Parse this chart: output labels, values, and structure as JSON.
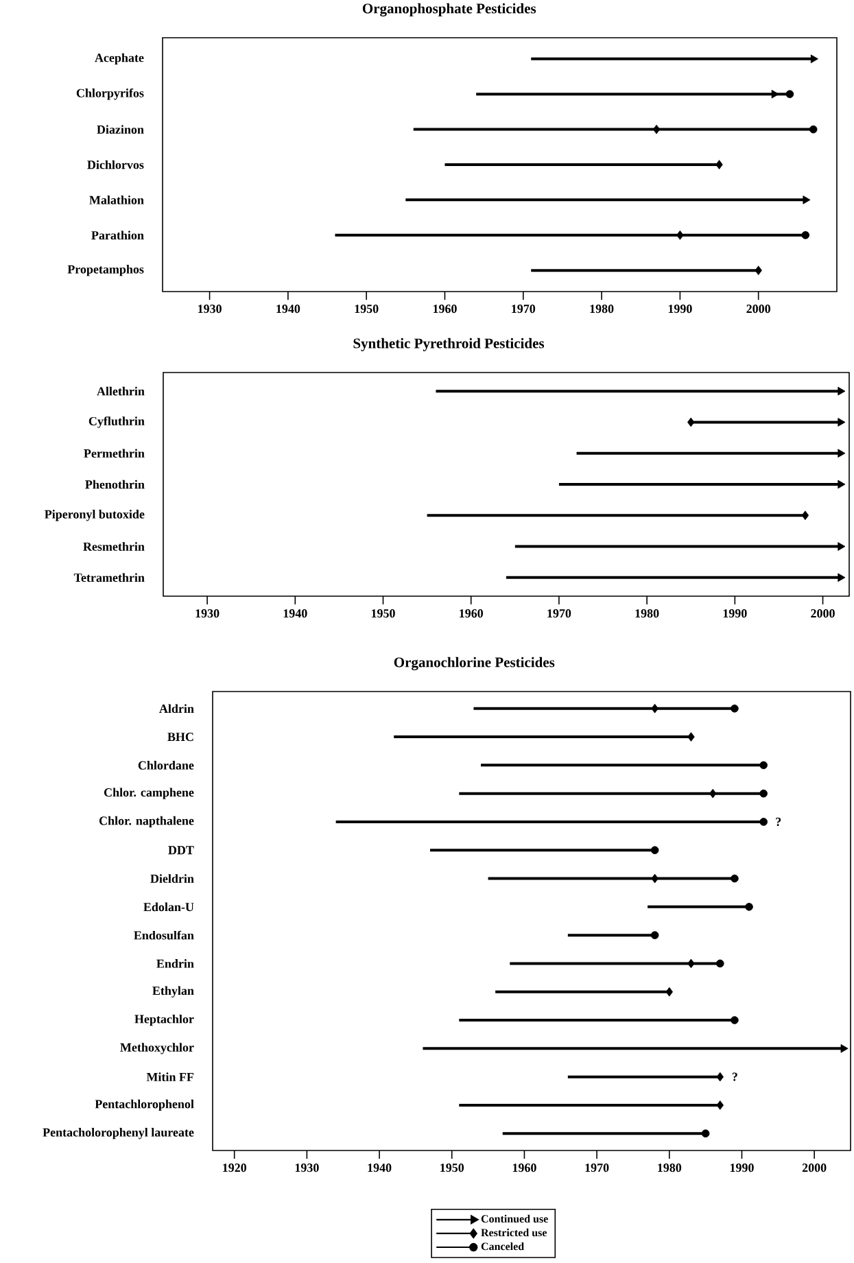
{
  "chart_data": [
    {
      "type": "bar",
      "orientation": "horizontal",
      "title": "Organophosphate Pesticides",
      "categories": [
        "Acephate",
        "Chlorpyrifos",
        "Diazinon",
        "Dichlorvos",
        "Malathion",
        "Parathion",
        "Propetamphos"
      ],
      "xlim": [
        1924,
        2010
      ],
      "xticks": [
        1930,
        1940,
        1950,
        1960,
        1970,
        1980,
        1990,
        2000
      ],
      "series": [
        {
          "color": "#000000",
          "base": [
            1971,
            1964,
            1956,
            1960,
            1955,
            1946,
            1971
          ],
          "values": [
            36,
            40,
            51,
            35,
            51,
            60,
            29
          ]
        },
        {
          "type": "scatter",
          "marker": "triangle",
          "color": "#000000",
          "values": [
            2007,
            2002,
            null,
            null,
            2006,
            null,
            null
          ]
        },
        {
          "type": "scatter",
          "marker": "diamond",
          "color": "#000000",
          "values": [
            null,
            null,
            1987,
            1995,
            null,
            1990,
            2000
          ]
        },
        {
          "type": "scatter",
          "marker": "circle",
          "color": "#000000",
          "values": [
            null,
            2004,
            2007,
            null,
            null,
            2006,
            null
          ]
        }
      ]
    },
    {
      "type": "bar",
      "orientation": "horizontal",
      "title": "Synthetic Pyrethroid Pesticides",
      "categories": [
        "Allethrin",
        "Cyfluthrin",
        "Permethrin",
        "Phenothrin",
        "Piperonyl butoxide",
        "Resmethrin",
        "Tetramethrin"
      ],
      "xlim": [
        1925,
        2003
      ],
      "xticks": [
        1930,
        1940,
        1950,
        1960,
        1970,
        1980,
        1990,
        2000
      ],
      "series": [
        {
          "color": "#000000",
          "base": [
            1956,
            1985,
            1972,
            1970,
            1955,
            1965,
            1964
          ],
          "values": [
            46,
            17,
            30,
            32,
            43,
            37,
            38
          ]
        },
        {
          "type": "scatter",
          "marker": "triangle",
          "color": "#000000",
          "values": [
            2002,
            2002,
            2002,
            2002,
            null,
            2002,
            2002
          ]
        },
        {
          "type": "scatter",
          "marker": "diamond",
          "color": "#000000",
          "values": [
            null,
            1985,
            null,
            null,
            1998,
            null,
            null
          ]
        }
      ]
    },
    {
      "type": "bar",
      "orientation": "horizontal",
      "title": "Organochlorine Pesticides",
      "legend": "bottom",
      "categories": [
        "Aldrin",
        "BHC",
        "Chlordane",
        "Chlor. camphene",
        "Chlor. napthalene",
        "DDT",
        "Dieldrin",
        "Edolan-U",
        "Endosulfan",
        "Endrin",
        "Ethylan",
        "Heptachlor",
        "Methoxychlor",
        "Mitin FF",
        "Pentachlorophenol",
        "Pentacholorophenyl laureate"
      ],
      "xlim": [
        1917,
        2005
      ],
      "xticks": [
        1920,
        1930,
        1940,
        1950,
        1960,
        1970,
        1980,
        1990,
        2000
      ],
      "annotations": [
        {
          "text": "?",
          "x": 1993,
          "y": "Chlor. napthalene"
        },
        {
          "text": "?",
          "x": 1987,
          "y": "Mitin FF"
        }
      ],
      "series": [
        {
          "color": "#000000",
          "base": [
            1953,
            1942,
            1954,
            1951,
            1934,
            1947,
            1955,
            1977,
            1966,
            1958,
            1956,
            1951,
            1946,
            1966,
            1951,
            1957
          ],
          "values": [
            36,
            41,
            39,
            42,
            59,
            31,
            34,
            14,
            12,
            29,
            24,
            38,
            58,
            21,
            36,
            28
          ]
        },
        {
          "type": "scatter",
          "name": "Continued use",
          "marker": "triangle",
          "color": "#000000",
          "values": [
            null,
            null,
            null,
            null,
            null,
            null,
            null,
            null,
            null,
            null,
            null,
            null,
            2004,
            null,
            null,
            null
          ]
        },
        {
          "type": "scatter",
          "name": "Restricted use",
          "marker": "diamond",
          "color": "#000000",
          "values": [
            1978,
            1983,
            null,
            1986,
            null,
            null,
            1978,
            null,
            null,
            1983,
            1980,
            null,
            null,
            1987,
            1987,
            null
          ]
        },
        {
          "type": "scatter",
          "name": "Canceled",
          "marker": "circle",
          "color": "#000000",
          "values": [
            1989,
            null,
            1993,
            1993,
            1993,
            1978,
            1989,
            1991,
            1978,
            1987,
            null,
            1989,
            null,
            null,
            null,
            1985
          ]
        }
      ]
    }
  ]
}
